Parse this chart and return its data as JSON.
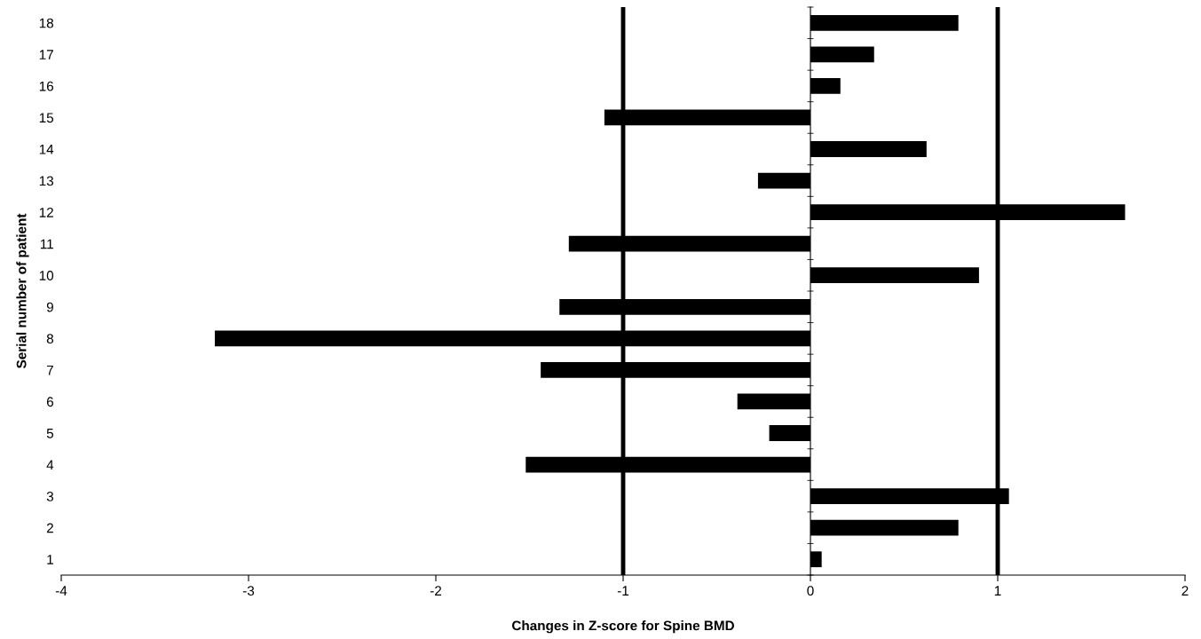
{
  "chart_data": {
    "type": "bar",
    "orientation": "horizontal",
    "xlabel": "Changes in Z-score for Spine BMD",
    "ylabel": "Serial number of patient",
    "categories": [
      "18",
      "17",
      "16",
      "15",
      "14",
      "13",
      "12",
      "11",
      "10",
      "9",
      "8",
      "7",
      "6",
      "5",
      "4",
      "3",
      "2",
      "1"
    ],
    "values": [
      0.79,
      0.34,
      0.16,
      -1.1,
      0.62,
      -0.28,
      1.68,
      -1.29,
      0.9,
      -1.34,
      -3.18,
      -1.44,
      -0.39,
      -0.22,
      -1.52,
      1.06,
      0.79,
      0.06
    ],
    "color": "#000000",
    "xlim": [
      -4,
      2
    ],
    "xticks": [
      -4,
      -3,
      -2,
      -1,
      0,
      1,
      2
    ],
    "ref_lines": [
      {
        "axis": "x",
        "value": -1,
        "color": "#000000"
      },
      {
        "axis": "x",
        "value": 1,
        "color": "#000000"
      }
    ],
    "grid": false
  }
}
